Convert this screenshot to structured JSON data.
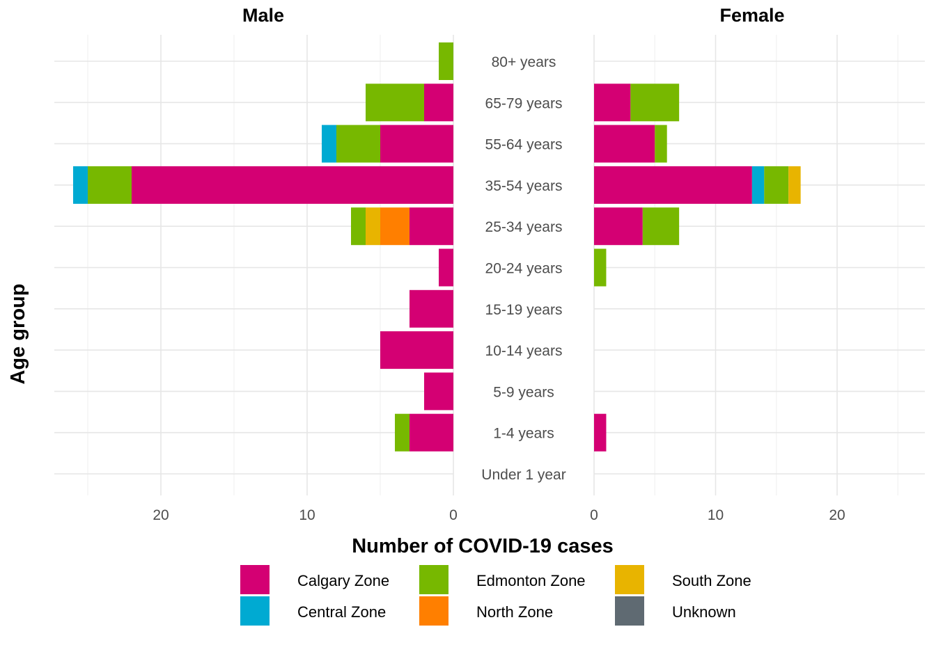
{
  "chart_data": {
    "type": "bar",
    "orientation": "horizontal-population-pyramid",
    "panels": [
      "Male",
      "Female"
    ],
    "ylabel": "Age group",
    "xlabel": "Number of COVID-19 cases",
    "categories": [
      "80+ years",
      "65-79 years",
      "55-64 years",
      "35-54 years",
      "25-34 years",
      "20-24 years",
      "15-19 years",
      "10-14 years",
      "5-9 years",
      "1-4 years",
      "Under 1 year"
    ],
    "male_xticks": [
      "20",
      "10",
      "0"
    ],
    "female_xticks": [
      "0",
      "10",
      "20"
    ],
    "xlim": [
      0,
      26
    ],
    "grid": true,
    "legend_position": "bottom",
    "series": [
      {
        "name": "Calgary Zone",
        "color": "#D40073",
        "male": [
          0,
          2,
          5,
          22,
          3,
          1,
          3,
          5,
          2,
          3,
          0
        ],
        "female": [
          0,
          3,
          5,
          13,
          4,
          0,
          0,
          0,
          0,
          1,
          0
        ]
      },
      {
        "name": "Central Zone",
        "color": "#00AAD2",
        "male": [
          0,
          0,
          1,
          1,
          0,
          0,
          0,
          0,
          0,
          0,
          0
        ],
        "female": [
          0,
          0,
          0,
          1,
          0,
          0,
          0,
          0,
          0,
          0,
          0
        ]
      },
      {
        "name": "Edmonton Zone",
        "color": "#77B800",
        "male": [
          1,
          4,
          3,
          3,
          1,
          0,
          0,
          0,
          0,
          1,
          0
        ],
        "female": [
          0,
          4,
          1,
          2,
          3,
          1,
          0,
          0,
          0,
          0,
          0
        ]
      },
      {
        "name": "North Zone",
        "color": "#FF7F00",
        "male": [
          0,
          0,
          0,
          0,
          2,
          0,
          0,
          0,
          0,
          0,
          0
        ],
        "female": [
          0,
          0,
          0,
          0,
          0,
          0,
          0,
          0,
          0,
          0,
          0
        ]
      },
      {
        "name": "South Zone",
        "color": "#E8B400",
        "male": [
          0,
          0,
          0,
          0,
          1,
          0,
          0,
          0,
          0,
          0,
          0
        ],
        "female": [
          0,
          0,
          0,
          1,
          0,
          0,
          0,
          0,
          0,
          0,
          0
        ]
      },
      {
        "name": "Unknown",
        "color": "#5F6A72",
        "male": [
          0,
          0,
          0,
          0,
          0,
          0,
          0,
          0,
          0,
          0,
          0
        ],
        "female": [
          0,
          0,
          0,
          0,
          0,
          0,
          0,
          0,
          0,
          0,
          0
        ]
      }
    ],
    "stack_order": {
      "male": [
        "Calgary Zone",
        "North Zone",
        "South Zone",
        "Edmonton Zone",
        "Central Zone",
        "Unknown"
      ],
      "female": [
        "Calgary Zone",
        "Central Zone",
        "Edmonton Zone",
        "South Zone",
        "North Zone",
        "Unknown"
      ]
    }
  }
}
